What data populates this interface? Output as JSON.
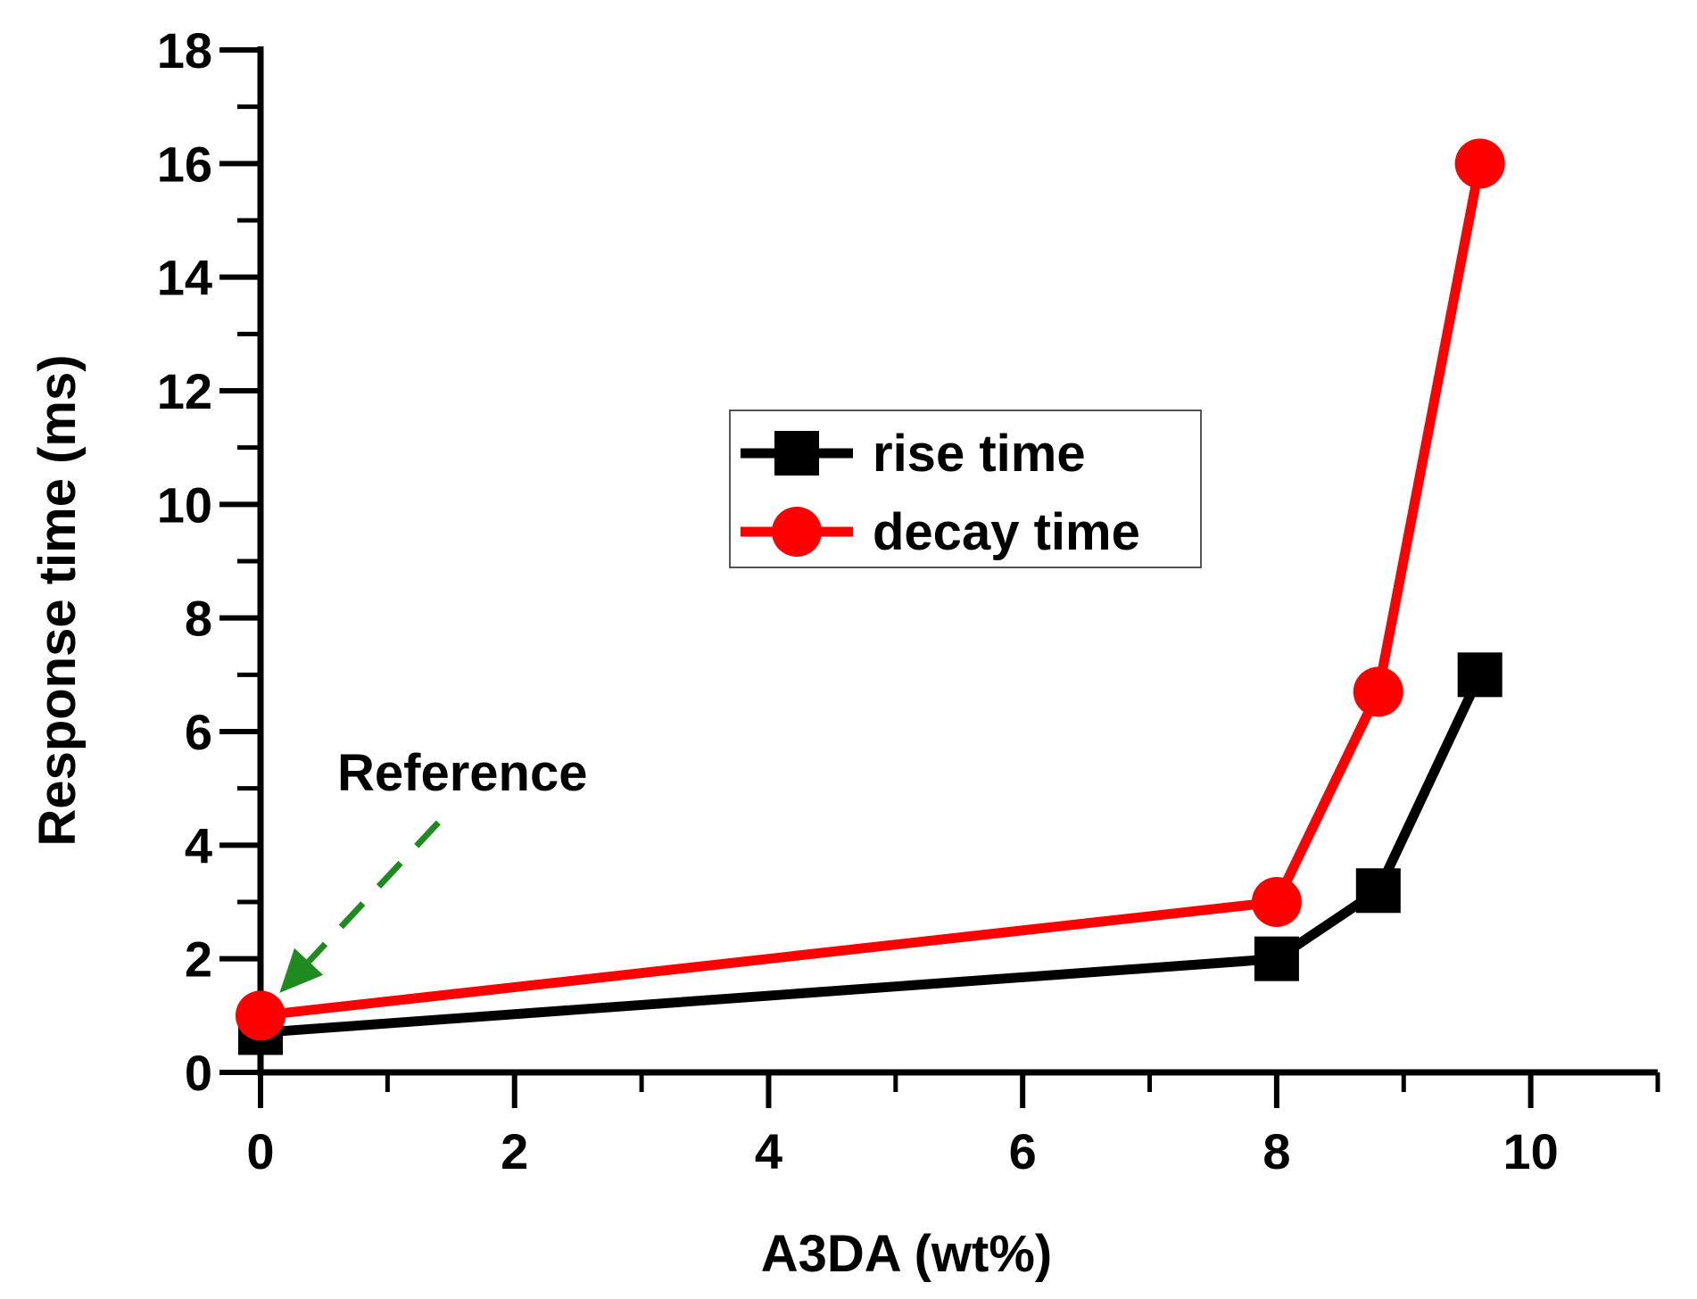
{
  "chart_data": {
    "type": "line",
    "title": "",
    "xlabel": "A3DA (wt%)",
    "ylabel": "Response time (ms)",
    "xlim": [
      0,
      11
    ],
    "ylim": [
      0,
      18
    ],
    "x_major_ticks": [
      0,
      2,
      4,
      6,
      8,
      10
    ],
    "x_minor_ticks": [
      1,
      3,
      5,
      7,
      9,
      11
    ],
    "x_tick_labels": [
      "0",
      "2",
      "4",
      "6",
      "8",
      "10"
    ],
    "y_major_ticks": [
      0,
      2,
      4,
      6,
      8,
      10,
      12,
      14,
      16,
      18
    ],
    "y_minor_ticks": [
      1,
      3,
      5,
      7,
      9,
      11,
      13,
      15,
      17
    ],
    "y_tick_labels": [
      "0",
      "2",
      "4",
      "6",
      "8",
      "10",
      "12",
      "14",
      "16",
      "18"
    ],
    "grid": false,
    "legend_position": "center",
    "series": [
      {
        "name": "rise time",
        "color": "#000000",
        "marker": "square",
        "x": [
          0,
          8,
          8.8,
          9.6
        ],
        "values": [
          0.7,
          2,
          3.2,
          7
        ]
      },
      {
        "name": "decay time",
        "color": "#ff0000",
        "marker": "circle",
        "x": [
          0,
          8,
          8.8,
          9.6
        ],
        "values": [
          1,
          3,
          6.7,
          16
        ]
      }
    ],
    "annotations": [
      {
        "text": "Reference",
        "color": "#000000",
        "arrow_color": "#1f8a1f",
        "arrow_from": [
          1.4,
          4.4
        ],
        "arrow_to": [
          0.15,
          1.4
        ]
      }
    ]
  }
}
